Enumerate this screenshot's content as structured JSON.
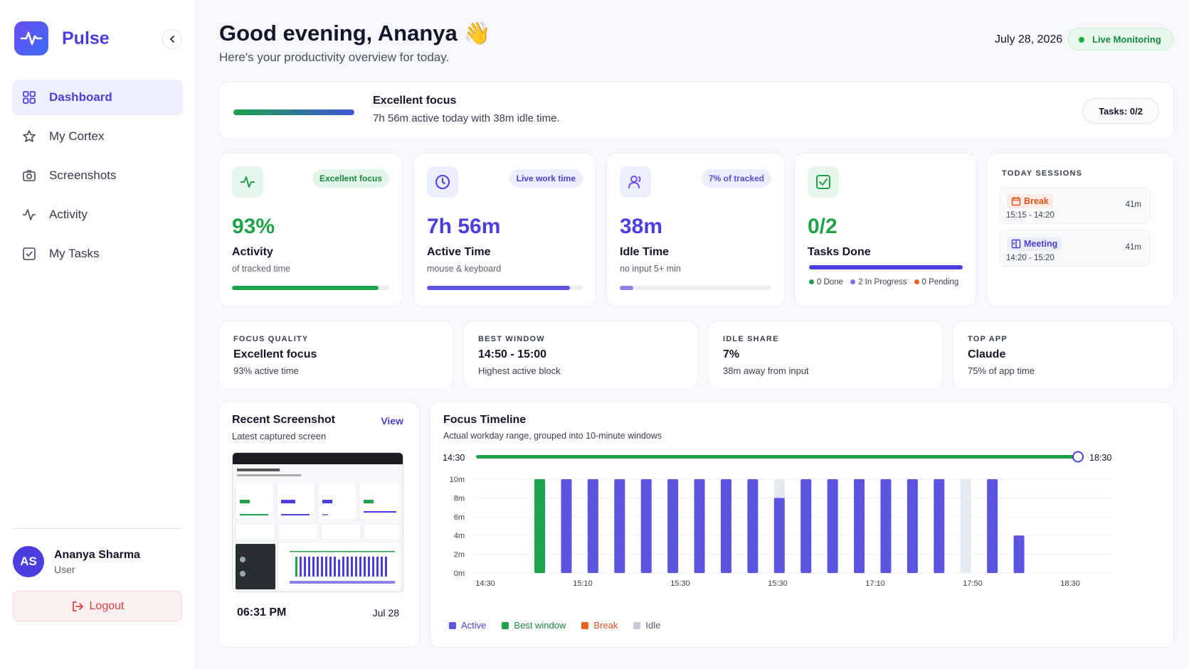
{
  "app": {
    "name": "Pulse"
  },
  "sidebar": {
    "items": [
      {
        "label": "Dashboard",
        "icon": "grid-icon",
        "active": true
      },
      {
        "label": "My Cortex",
        "icon": "star-icon"
      },
      {
        "label": "Screenshots",
        "icon": "camera-icon"
      },
      {
        "label": "Activity",
        "icon": "pulse-icon"
      },
      {
        "label": "My Tasks",
        "icon": "checkbox-icon"
      }
    ],
    "user": {
      "initials": "AS",
      "name": "Ananya Sharma",
      "role": "User"
    },
    "logout_label": "Logout"
  },
  "header": {
    "greeting": "Good evening, Ananya 👋",
    "subtitle": "Here's your productivity overview for today.",
    "date": "July 28, 2026",
    "live_label": "Live Monitoring"
  },
  "banner": {
    "title": "Excellent focus",
    "subtitle": "7h 56m active today with 38m idle time.",
    "tasks_label": "Tasks: 0/2"
  },
  "stats": [
    {
      "badge": "Excellent focus",
      "value": "93%",
      "label": "Activity",
      "sub": "of tracked time",
      "progress": 0.93,
      "color": "#1ea24a",
      "icon": "pulse-icon"
    },
    {
      "badge": "Live work time",
      "value": "7h 56m",
      "label": "Active Time",
      "sub": "mouse & keyboard",
      "progress": 0.92,
      "color": "#5b54e0",
      "icon": "clock-icon"
    },
    {
      "badge": "7% of tracked",
      "value": "38m",
      "label": "Idle Time",
      "sub": "no input 5+ min",
      "progress": 0.09,
      "color": "#8a84ea",
      "icon": "user-idle-icon"
    }
  ],
  "tasks_card": {
    "value": "0/2",
    "label": "Tasks Done",
    "legend": [
      {
        "label": "0 Done",
        "color": "#1ea24a"
      },
      {
        "label": "2 In Progress",
        "color": "#7a74e8"
      },
      {
        "label": "0 Pending",
        "color": "#f0621f"
      }
    ]
  },
  "sessions": {
    "title": "TODAY SESSIONS",
    "items": [
      {
        "name": "Break",
        "time": "15:15 - 14:20",
        "duration": "41m",
        "color": "#e2521a",
        "bg": "#fdece4"
      },
      {
        "name": "Meeting",
        "time": "14:20 - 15:20",
        "duration": "41m",
        "color": "#4b3ee0",
        "bg": "#eceefd"
      }
    ]
  },
  "insights": [
    {
      "label": "FOCUS QUALITY",
      "value": "Excellent focus",
      "sub": "93% active time"
    },
    {
      "label": "BEST WINDOW",
      "value": "14:50 - 15:00",
      "sub": "Highest active block"
    },
    {
      "label": "IDLE SHARE",
      "value": "7%",
      "sub": "38m away from input"
    },
    {
      "label": "TOP APP",
      "value": "Claude",
      "sub": "75% of app time"
    }
  ],
  "recent_screenshot": {
    "title": "Recent Screenshot",
    "view_label": "View",
    "subtitle": "Latest captured screen",
    "time": "06:31 PM",
    "date": "Jul 28"
  },
  "chart_data": {
    "type": "bar",
    "title": "Focus Timeline",
    "subtitle": "Actual workday range, grouped into 10-minute windows",
    "range_start": "14:30",
    "range_end": "18:30",
    "y_ticks": [
      "10m",
      "8m",
      "6m",
      "4m",
      "2m",
      "0m"
    ],
    "ylim": [
      0,
      10
    ],
    "x_ticks": [
      "14:30",
      "15:10",
      "15:30",
      "15:30",
      "17:10",
      "17:50",
      "18:30"
    ],
    "bars": [
      {
        "value": 0,
        "kind": "none"
      },
      {
        "value": 0,
        "kind": "none"
      },
      {
        "value": 10,
        "kind": "best"
      },
      {
        "value": 10,
        "kind": "active"
      },
      {
        "value": 10,
        "kind": "active"
      },
      {
        "value": 10,
        "kind": "active"
      },
      {
        "value": 10,
        "kind": "active"
      },
      {
        "value": 10,
        "kind": "active"
      },
      {
        "value": 10,
        "kind": "active"
      },
      {
        "value": 10,
        "kind": "active"
      },
      {
        "value": 10,
        "kind": "active"
      },
      {
        "value": 8,
        "kind": "active",
        "idle": 2
      },
      {
        "value": 10,
        "kind": "active"
      },
      {
        "value": 10,
        "kind": "active"
      },
      {
        "value": 10,
        "kind": "active"
      },
      {
        "value": 10,
        "kind": "active"
      },
      {
        "value": 10,
        "kind": "active"
      },
      {
        "value": 10,
        "kind": "active"
      },
      {
        "value": 10,
        "kind": "idle"
      },
      {
        "value": 10,
        "kind": "active"
      },
      {
        "value": 4,
        "kind": "active"
      },
      {
        "value": 0,
        "kind": "none"
      },
      {
        "value": 0,
        "kind": "none"
      },
      {
        "value": 0,
        "kind": "none"
      }
    ],
    "legend": [
      {
        "label": "Active",
        "color": "#5b54e0"
      },
      {
        "label": "Best window",
        "color": "#1ea24a"
      },
      {
        "label": "Break",
        "color": "#f0621f"
      },
      {
        "label": "Idle",
        "color": "#c9ccd8"
      }
    ]
  }
}
